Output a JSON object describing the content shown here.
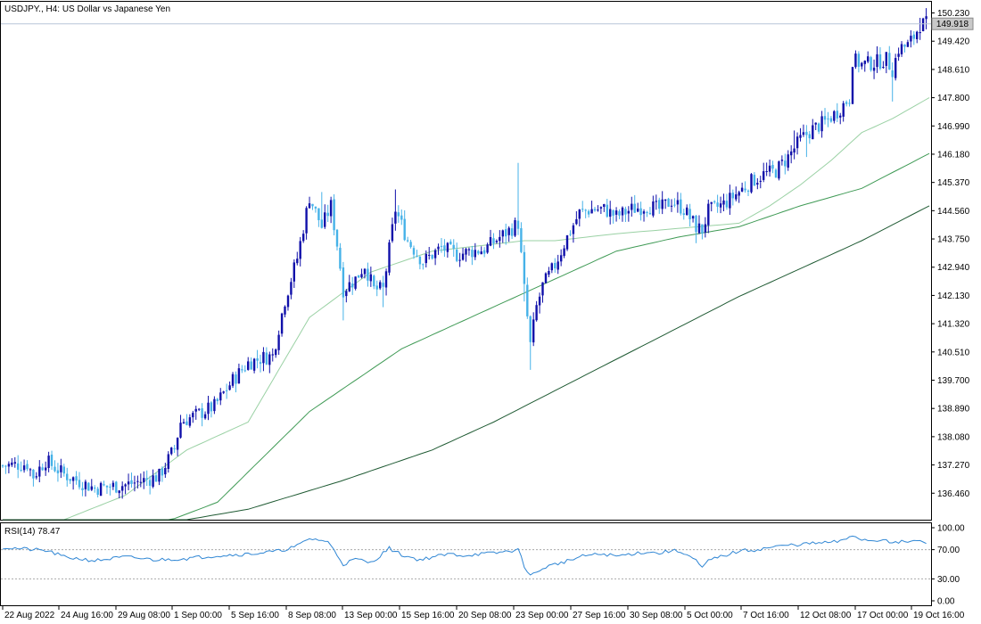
{
  "header": {
    "symbol_label": "USDJPY., H4:  US Dollar vs Japanese Yen"
  },
  "price_tag": "149.918",
  "indicator": {
    "label": "RSI(14) 78.47",
    "levels": [
      70,
      30
    ],
    "value": 78.47
  },
  "colors": {
    "candle_up": "#1010aa",
    "candle_down": "#46b2e8",
    "ma_fast": "#9ad1a4",
    "ma_mid": "#3f9a55",
    "ma_slow": "#1f5a33",
    "rsi": "#2f86d4",
    "level_line": "#a9a9a9",
    "axis": "#000000",
    "price_line": "#b8c6d8"
  },
  "chart_data": [
    {
      "type": "candlestick",
      "title": "USDJPY., H4:  US Dollar vs Japanese Yen",
      "ylim": [
        135.7,
        150.55
      ],
      "y_ticks": [
        "150.230",
        "149.420",
        "148.610",
        "147.800",
        "146.990",
        "146.180",
        "145.370",
        "144.560",
        "143.750",
        "142.940",
        "142.130",
        "141.320",
        "140.510",
        "139.700",
        "138.890",
        "138.080",
        "137.270",
        "136.460"
      ],
      "x_ticks": [
        "22 Aug 2022",
        "24 Aug 16:00",
        "29 Aug 08:00",
        "1 Sep 00:00",
        "5 Sep 16:00",
        "8 Sep 08:00",
        "13 Sep 00:00",
        "15 Sep 16:00",
        "20 Sep 08:00",
        "23 Sep 00:00",
        "27 Sep 16:00",
        "30 Sep 08:00",
        "5 Oct 00:00",
        "7 Oct 16:00",
        "12 Oct 08:00",
        "17 Oct 00:00",
        "19 Oct 16:00"
      ],
      "last_price": 149.918,
      "close_path": [
        [
          0,
          137.25
        ],
        [
          8,
          137.3
        ],
        [
          10,
          136.95
        ],
        [
          14,
          137.4
        ],
        [
          20,
          137.0
        ],
        [
          30,
          136.6
        ],
        [
          40,
          136.7
        ],
        [
          47,
          136.85
        ],
        [
          51,
          136.95
        ],
        [
          56,
          137.75
        ],
        [
          58,
          138.5
        ],
        [
          63,
          138.7
        ],
        [
          69,
          138.95
        ],
        [
          75,
          139.7
        ],
        [
          80,
          140.2
        ],
        [
          85,
          140.35
        ],
        [
          88,
          140.4
        ],
        [
          92,
          142.0
        ],
        [
          96,
          143.2
        ],
        [
          100,
          144.95
        ],
        [
          104,
          144.1
        ],
        [
          107,
          144.7
        ],
        [
          109,
          143.6
        ],
        [
          111,
          142.3
        ],
        [
          115,
          142.6
        ],
        [
          118,
          143.0
        ],
        [
          121,
          142.3
        ],
        [
          124,
          142.3
        ],
        [
          128,
          144.6
        ],
        [
          132,
          143.7
        ],
        [
          137,
          143.1
        ],
        [
          143,
          143.5
        ],
        [
          148,
          143.3
        ],
        [
          153,
          143.4
        ],
        [
          157,
          143.45
        ],
        [
          162,
          143.8
        ],
        [
          166,
          144.05
        ],
        [
          168,
          144.2
        ],
        [
          170,
          142.3
        ],
        [
          172,
          140.7
        ],
        [
          174,
          141.8
        ],
        [
          176,
          142.4
        ],
        [
          178,
          142.7
        ],
        [
          180,
          143.0
        ],
        [
          184,
          143.8
        ],
        [
          188,
          144.5
        ],
        [
          192,
          144.6
        ],
        [
          196,
          144.6
        ],
        [
          200,
          144.4
        ],
        [
          205,
          144.6
        ],
        [
          210,
          144.7
        ],
        [
          214,
          144.6
        ],
        [
          218,
          144.85
        ],
        [
          222,
          144.6
        ],
        [
          226,
          144.1
        ],
        [
          228,
          144.0
        ],
        [
          230,
          144.55
        ],
        [
          235,
          144.75
        ],
        [
          240,
          145.1
        ],
        [
          244,
          145.4
        ],
        [
          248,
          145.6
        ],
        [
          252,
          145.7
        ],
        [
          256,
          146.1
        ],
        [
          260,
          146.6
        ],
        [
          264,
          146.9
        ],
        [
          268,
          147.1
        ],
        [
          272,
          147.4
        ],
        [
          276,
          147.8
        ],
        [
          277,
          148.9
        ],
        [
          280,
          148.75
        ],
        [
          284,
          148.8
        ],
        [
          288,
          148.9
        ],
        [
          290,
          148.6
        ],
        [
          292,
          149.2
        ],
        [
          295,
          149.3
        ],
        [
          297,
          149.55
        ],
        [
          299,
          149.9
        ],
        [
          301,
          149.918
        ]
      ],
      "moving_averages": [
        {
          "name": "ma_fast",
          "path": [
            [
              0,
              135.7
            ],
            [
              20,
              135.7
            ],
            [
              40,
              136.4
            ],
            [
              60,
              137.7
            ],
            [
              80,
              138.5
            ],
            [
              100,
              141.5
            ],
            [
              120,
              142.8
            ],
            [
              140,
              143.4
            ],
            [
              160,
              143.6
            ],
            [
              170,
              143.7
            ],
            [
              180,
              143.7
            ],
            [
              200,
              143.9
            ],
            [
              220,
              144.05
            ],
            [
              240,
              144.2
            ],
            [
              250,
              144.7
            ],
            [
              260,
              145.3
            ],
            [
              270,
              146.0
            ],
            [
              280,
              146.8
            ],
            [
              290,
              147.2
            ],
            [
              302,
              147.8
            ]
          ]
        },
        {
          "name": "ma_mid",
          "path": [
            [
              0,
              135.7
            ],
            [
              40,
              135.7
            ],
            [
              55,
              135.7
            ],
            [
              70,
              136.2
            ],
            [
              100,
              138.8
            ],
            [
              130,
              140.6
            ],
            [
              160,
              141.8
            ],
            [
              180,
              142.6
            ],
            [
              200,
              143.4
            ],
            [
              220,
              143.8
            ],
            [
              240,
              144.1
            ],
            [
              260,
              144.7
            ],
            [
              280,
              145.2
            ],
            [
              302,
              146.2
            ]
          ]
        },
        {
          "name": "ma_slow",
          "path": [
            [
              0,
              135.7
            ],
            [
              60,
              135.7
            ],
            [
              80,
              136.0
            ],
            [
              110,
              136.8
            ],
            [
              140,
              137.7
            ],
            [
              160,
              138.5
            ],
            [
              180,
              139.4
            ],
            [
              200,
              140.3
            ],
            [
              220,
              141.2
            ],
            [
              240,
              142.1
            ],
            [
              260,
              142.9
            ],
            [
              280,
              143.7
            ],
            [
              302,
              144.7
            ]
          ]
        }
      ]
    },
    {
      "type": "line",
      "title": "RSI(14) 78.47",
      "ylim": [
        0,
        100
      ],
      "y_ticks": [
        "100.00",
        "70.00",
        "30.00",
        "0.00"
      ],
      "levels": [
        70,
        30
      ],
      "path": [
        [
          0,
          73
        ],
        [
          10,
          70
        ],
        [
          15,
          68
        ],
        [
          20,
          60
        ],
        [
          30,
          55
        ],
        [
          40,
          60
        ],
        [
          50,
          56
        ],
        [
          60,
          58
        ],
        [
          70,
          62
        ],
        [
          80,
          64
        ],
        [
          90,
          68
        ],
        [
          96,
          75
        ],
        [
          100,
          85
        ],
        [
          104,
          83
        ],
        [
          106,
          80
        ],
        [
          108,
          70
        ],
        [
          111,
          50
        ],
        [
          115,
          57
        ],
        [
          120,
          52
        ],
        [
          126,
          72
        ],
        [
          130,
          63
        ],
        [
          136,
          56
        ],
        [
          140,
          60
        ],
        [
          146,
          64
        ],
        [
          150,
          62
        ],
        [
          155,
          64
        ],
        [
          160,
          65
        ],
        [
          165,
          68
        ],
        [
          168,
          70
        ],
        [
          170,
          48
        ],
        [
          172,
          35
        ],
        [
          174,
          38
        ],
        [
          176,
          45
        ],
        [
          180,
          50
        ],
        [
          186,
          57
        ],
        [
          190,
          62
        ],
        [
          196,
          64
        ],
        [
          200,
          61
        ],
        [
          206,
          65
        ],
        [
          210,
          67
        ],
        [
          214,
          65
        ],
        [
          218,
          69
        ],
        [
          222,
          66
        ],
        [
          226,
          55
        ],
        [
          228,
          44
        ],
        [
          230,
          55
        ],
        [
          236,
          63
        ],
        [
          240,
          68
        ],
        [
          246,
          70
        ],
        [
          250,
          73
        ],
        [
          256,
          76
        ],
        [
          262,
          78
        ],
        [
          266,
          79
        ],
        [
          270,
          80
        ],
        [
          274,
          82
        ],
        [
          277,
          90
        ],
        [
          280,
          84
        ],
        [
          284,
          82
        ],
        [
          288,
          85
        ],
        [
          290,
          78
        ],
        [
          292,
          80
        ],
        [
          295,
          81
        ],
        [
          298,
          82
        ],
        [
          301,
          78.47
        ]
      ]
    }
  ]
}
